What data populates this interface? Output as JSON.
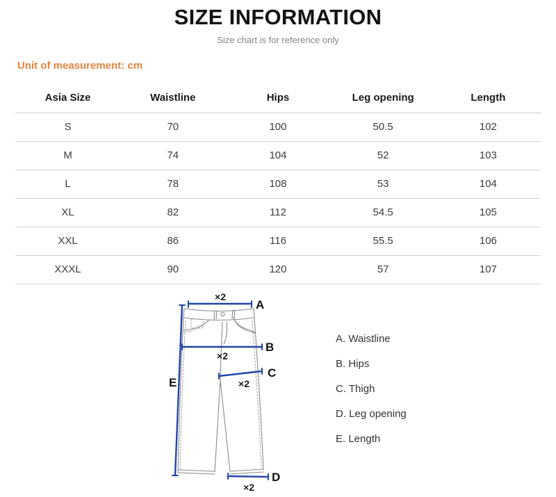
{
  "header": {
    "title": "SIZE INFORMATION",
    "subtitle": "Size chart is for reference only",
    "unit_label": "Unit of measurement: cm"
  },
  "colors": {
    "accent_orange": "#E7853E",
    "measure_blue": "#2145A8",
    "jeans_outline_gray": "#8A8A8A",
    "table_border_gray": "#CCCCCC"
  },
  "chart_data": {
    "type": "table",
    "title": "SIZE INFORMATION",
    "columns": [
      "Asia Size",
      "Waistline",
      "Hips",
      "Leg opening",
      "Length"
    ],
    "rows": [
      [
        "S",
        "70",
        "100",
        "50.5",
        "102"
      ],
      [
        "M",
        "74",
        "104",
        "52",
        "103"
      ],
      [
        "L",
        "78",
        "108",
        "53",
        "104"
      ],
      [
        "XL",
        "82",
        "112",
        "54.5",
        "105"
      ],
      [
        "XXL",
        "86",
        "116",
        "55.5",
        "106"
      ],
      [
        "XXXL",
        "90",
        "120",
        "57",
        "107"
      ]
    ]
  },
  "diagram": {
    "multiplier_a": "×2",
    "multiplier_b": "×2",
    "multiplier_c": "×2",
    "multiplier_d": "×2",
    "label_a": "A",
    "label_b": "B",
    "label_c": "C",
    "label_d": "D",
    "label_e": "E"
  },
  "legend": {
    "items": [
      "A. Waistline",
      "B. Hips",
      "C. Thigh",
      "D. Leg opening",
      "E. Length"
    ]
  }
}
